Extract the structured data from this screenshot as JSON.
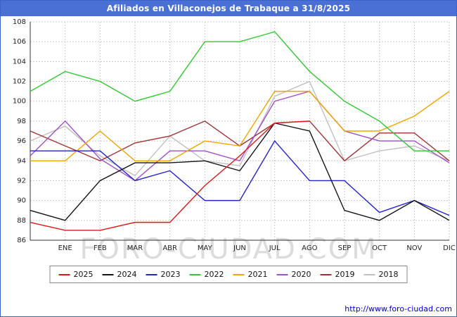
{
  "title_bar": {
    "title": "Afiliados en Villaconejos de Trabaque a 31/8/2025"
  },
  "watermark": "FORO-CIUDAD.COM",
  "footer": {
    "url": "http://www.foro-ciudad.com"
  },
  "chart_data": {
    "type": "line",
    "title": "Afiliados en Villaconejos de Trabaque a 31/8/2025",
    "xlabel": "",
    "ylabel": "",
    "ylim": [
      86,
      108
    ],
    "ytick_step": 2,
    "grid": true,
    "legend_position": "bottom",
    "categories": [
      "",
      "ENE",
      "FEB",
      "MAR",
      "ABR",
      "MAY",
      "JUN",
      "JUL",
      "AGO",
      "SEP",
      "OCT",
      "NOV",
      "DIC"
    ],
    "series": [
      {
        "name": "2025",
        "color": "#e01818",
        "values": [
          87.8,
          87,
          87,
          87.8,
          87.8,
          91.5,
          94.5,
          97.8,
          98
        ]
      },
      {
        "name": "2024",
        "color": "#141414",
        "values": [
          89,
          88,
          92,
          93.8,
          93.8,
          94,
          93,
          97.8,
          97,
          89,
          88,
          90,
          88
        ]
      },
      {
        "name": "2023",
        "color": "#2323cf",
        "values": [
          95,
          95,
          95,
          92,
          93,
          90,
          90,
          96,
          92,
          92,
          88.8,
          90,
          88.5
        ]
      },
      {
        "name": "2022",
        "color": "#30c930",
        "values": [
          101,
          103,
          102,
          100,
          101,
          106,
          106,
          107,
          103,
          100,
          98,
          95,
          95
        ]
      },
      {
        "name": "2021",
        "color": "#f0a500",
        "values": [
          94,
          94,
          97,
          94,
          94,
          96,
          95.5,
          101,
          101,
          97,
          97,
          98.5,
          101
        ]
      },
      {
        "name": "2020",
        "color": "#a050c8",
        "values": [
          94.5,
          98,
          94.2,
          92,
          95,
          95,
          94,
          100,
          101,
          97,
          96,
          96,
          93.8
        ]
      },
      {
        "name": "2019",
        "color": "#a03333",
        "values": [
          97,
          95.5,
          94,
          95.8,
          96.5,
          98,
          95.5,
          97.8,
          98,
          94,
          96.8,
          96.8,
          94
        ]
      },
      {
        "name": "2018",
        "color": "#c0c0c0",
        "values": [
          96,
          97.5,
          94.5,
          92.5,
          96.5,
          94,
          93.5,
          100.5,
          102,
          94,
          95,
          95.5,
          94
        ]
      }
    ]
  }
}
